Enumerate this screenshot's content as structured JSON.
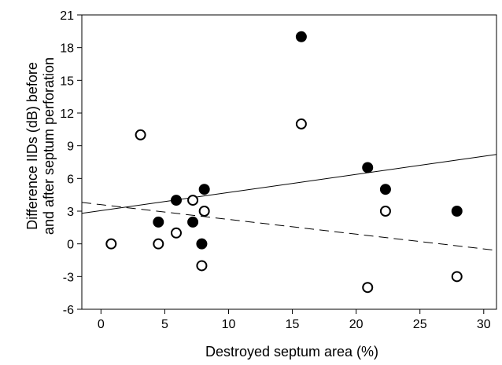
{
  "chart_data": {
    "type": "scatter",
    "xlabel": "Destroyed septum area (%)",
    "ylabel_line1": "Difference IIDs (dB) before",
    "ylabel_line2": "and after septum perforation",
    "xlim": [
      -1.5,
      31
    ],
    "ylim": [
      -6,
      21
    ],
    "x_ticks": [
      0,
      5,
      10,
      15,
      20,
      25,
      30
    ],
    "y_ticks": [
      -6,
      -3,
      0,
      3,
      6,
      9,
      12,
      15,
      18,
      21
    ],
    "grid": false,
    "series": [
      {
        "marker": "filled-circle",
        "color": "#000000",
        "points": [
          {
            "x": 4.5,
            "y": 2
          },
          {
            "x": 5.9,
            "y": 4
          },
          {
            "x": 7.2,
            "y": 2
          },
          {
            "x": 7.9,
            "y": 0
          },
          {
            "x": 8.1,
            "y": 5
          },
          {
            "x": 15.7,
            "y": 19
          },
          {
            "x": 20.9,
            "y": 7
          },
          {
            "x": 22.3,
            "y": 5
          },
          {
            "x": 27.9,
            "y": 3
          }
        ]
      },
      {
        "marker": "open-circle",
        "color": "#000000",
        "points": [
          {
            "x": 0.8,
            "y": 0
          },
          {
            "x": 3.1,
            "y": 10
          },
          {
            "x": 4.5,
            "y": 0
          },
          {
            "x": 5.9,
            "y": 1
          },
          {
            "x": 7.2,
            "y": 4
          },
          {
            "x": 7.9,
            "y": -2
          },
          {
            "x": 8.1,
            "y": 3
          },
          {
            "x": 15.7,
            "y": 11
          },
          {
            "x": 20.9,
            "y": -4
          },
          {
            "x": 22.3,
            "y": 3
          },
          {
            "x": 27.9,
            "y": -3
          }
        ]
      }
    ],
    "fit_lines": [
      {
        "style": "solid",
        "x": [
          -1.5,
          31
        ],
        "y": [
          2.8,
          8.2
        ]
      },
      {
        "style": "dashed",
        "x": [
          -1.5,
          31
        ],
        "y": [
          3.8,
          -0.6
        ]
      }
    ]
  }
}
